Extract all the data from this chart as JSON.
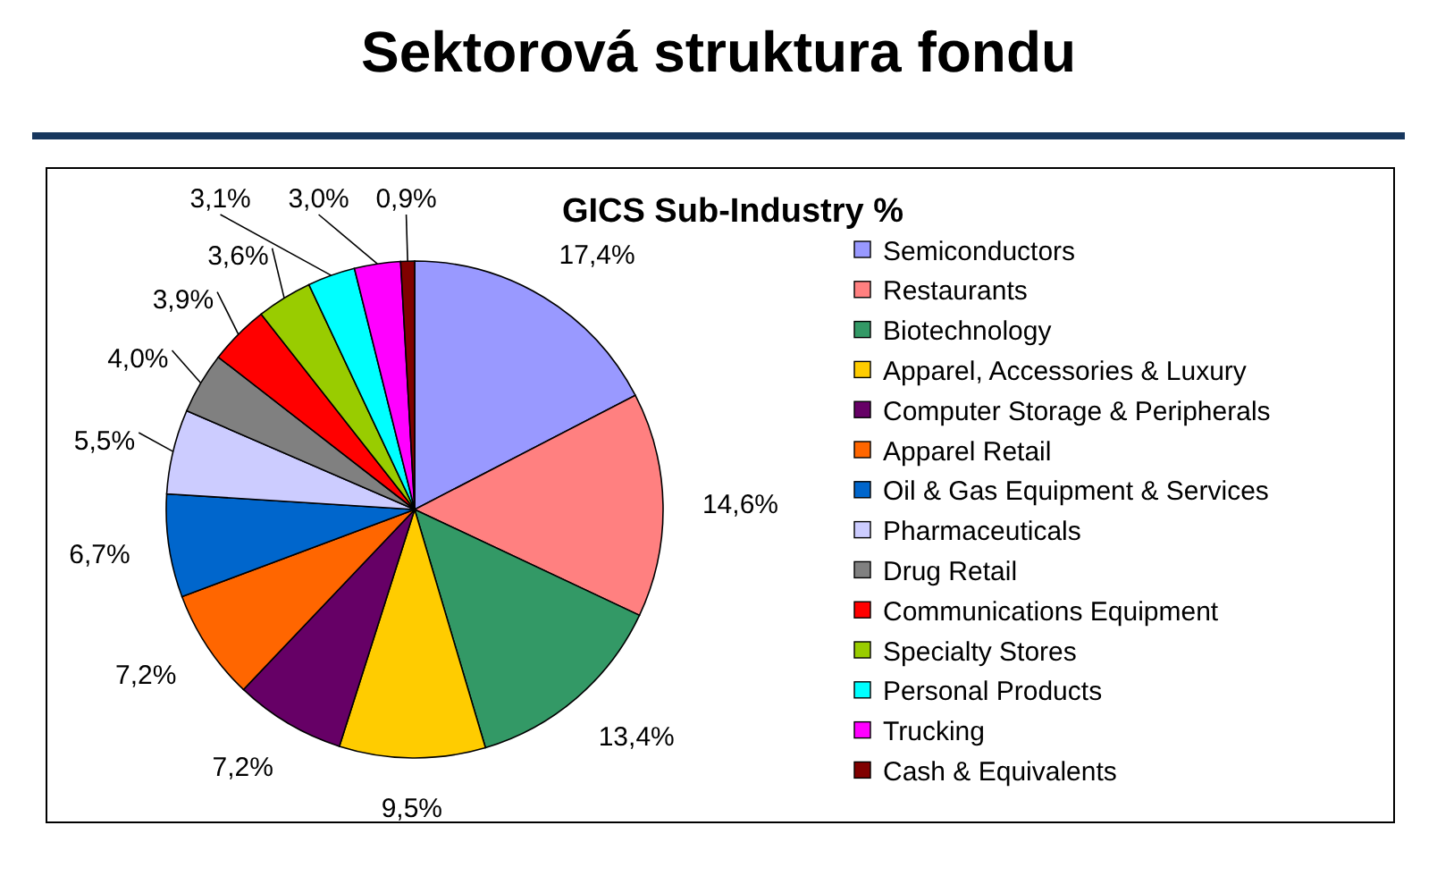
{
  "chart_data": {
    "type": "pie",
    "title": "Sektorová struktura fondu",
    "subtitle": "GICS Sub-Industry %",
    "categories": [
      "Semiconductors",
      "Restaurants",
      "Biotechnology",
      "Apparel, Accessories & Luxury",
      "Computer Storage & Peripherals",
      "Apparel Retail",
      "Oil & Gas Equipment & Services",
      "Pharmaceuticals",
      "Drug Retail",
      "Communications Equipment",
      "Specialty Stores",
      "Personal Products",
      "Trucking",
      "Cash & Equivalents"
    ],
    "values": [
      17.4,
      14.6,
      13.4,
      9.5,
      7.2,
      7.2,
      6.7,
      5.5,
      4.0,
      3.9,
      3.6,
      3.1,
      3.0,
      0.9
    ],
    "value_labels": [
      "17,4%",
      "14,6%",
      "13,4%",
      "9,5%",
      "7,2%",
      "7,2%",
      "6,7%",
      "5,5%",
      "4,0%",
      "3,9%",
      "3,6%",
      "3,1%",
      "3,0%",
      "0,9%"
    ],
    "colors": [
      "#9999ff",
      "#ff8080",
      "#339966",
      "#ffcc00",
      "#660066",
      "#ff6600",
      "#0066cc",
      "#ccccff",
      "#808080",
      "#ff0000",
      "#99cc00",
      "#00ffff",
      "#ff00ff",
      "#800000"
    ],
    "legend": "right"
  }
}
